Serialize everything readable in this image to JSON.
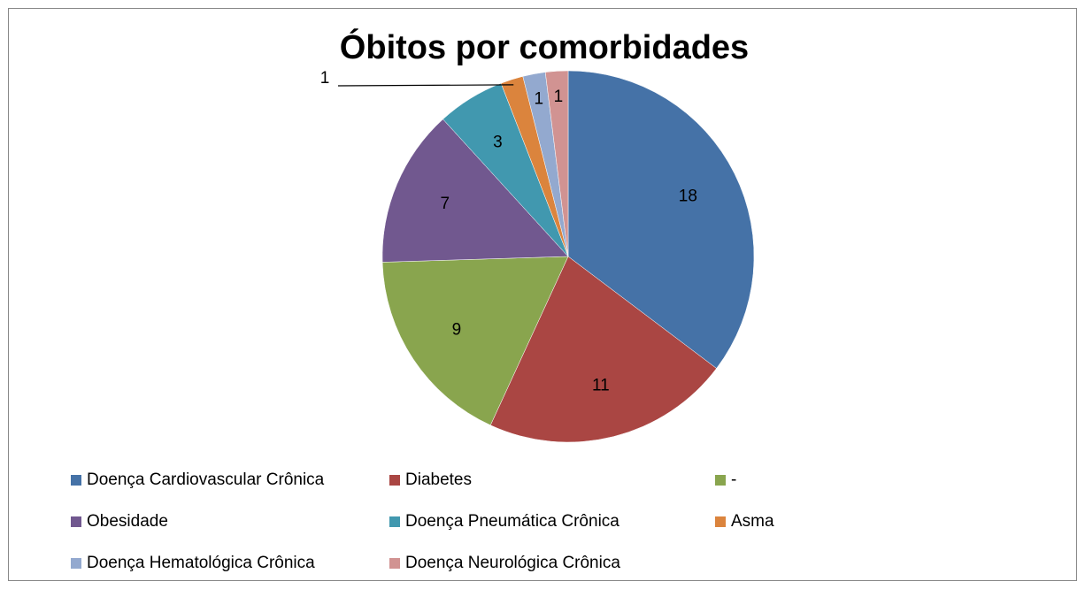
{
  "chart_data": {
    "type": "pie",
    "title": "Óbitos por comorbidades",
    "categories": [
      "Doença Cardiovascular Crônica",
      "Diabetes",
      "-",
      "Obesidade",
      "Doença Pneumática Crônica",
      "Asma",
      "Doença Hematológica Crônica",
      "Doença Neurológica Crônica"
    ],
    "values": [
      18,
      11,
      9,
      7,
      3,
      1,
      1,
      1
    ],
    "colors": [
      "#4572a7",
      "#aa4643",
      "#89a54e",
      "#71588f",
      "#4198af",
      "#db843d",
      "#93a9cf",
      "#d19392"
    ],
    "legend": "bottom"
  }
}
